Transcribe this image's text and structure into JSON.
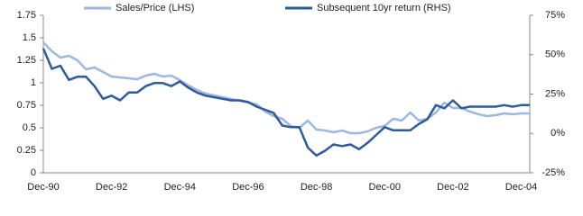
{
  "chart_data": {
    "type": "line",
    "categories": [
      "Dec-90",
      null,
      null,
      null,
      null,
      null,
      null,
      null,
      "Dec-92",
      null,
      null,
      null,
      null,
      null,
      null,
      null,
      "Dec-94",
      null,
      null,
      null,
      null,
      null,
      null,
      null,
      "Dec-96",
      null,
      null,
      null,
      null,
      null,
      null,
      null,
      "Dec-98",
      null,
      null,
      null,
      null,
      null,
      null,
      null,
      "Dec-00",
      null,
      null,
      null,
      null,
      null,
      null,
      null,
      "Dec-02",
      null,
      null,
      null,
      null,
      null,
      null,
      null,
      "Dec-04",
      null
    ],
    "series": [
      {
        "name": "Sales/Price (LHS)",
        "color": "#9db8e0",
        "axis": "y",
        "values": [
          1.45,
          1.35,
          1.28,
          1.3,
          1.25,
          1.15,
          1.17,
          1.12,
          1.07,
          1.06,
          1.05,
          1.04,
          1.08,
          1.1,
          1.07,
          1.08,
          1.03,
          0.97,
          0.92,
          0.88,
          0.86,
          0.84,
          0.82,
          0.8,
          0.78,
          0.76,
          0.68,
          0.63,
          0.6,
          0.52,
          0.5,
          0.58,
          0.48,
          0.47,
          0.45,
          0.47,
          0.44,
          0.44,
          0.46,
          0.5,
          0.52,
          0.6,
          0.58,
          0.67,
          0.58,
          0.6,
          0.67,
          0.78,
          0.72,
          0.72,
          0.68,
          0.65,
          0.63,
          0.64,
          0.66,
          0.65,
          0.66,
          0.66
        ]
      },
      {
        "name": "Subsequent 10yr return (RHS)",
        "color": "#2f5b9b",
        "axis": "y2",
        "values": [
          54,
          41,
          43,
          34,
          36,
          36,
          30,
          22,
          24,
          21,
          26,
          26,
          30,
          32,
          32,
          30,
          33,
          29,
          26,
          24,
          23,
          22,
          21,
          21,
          20,
          17,
          15,
          13,
          5,
          4,
          4,
          -9,
          -14,
          -11,
          -7,
          -8,
          -7,
          -10,
          -6,
          -1,
          4,
          2,
          2,
          2,
          6,
          9,
          18,
          16,
          21,
          16,
          17,
          17,
          17,
          17,
          18,
          17,
          18,
          18
        ]
      }
    ],
    "ylim": [
      0,
      1.75
    ],
    "yticks": [
      0,
      0.25,
      0.5,
      0.75,
      1,
      1.25,
      1.5,
      1.75
    ],
    "y2lim": [
      -25,
      75
    ],
    "y2ticks": [
      {
        "value": -25,
        "label": "-25%"
      },
      {
        "value": 0,
        "label": "0%"
      },
      {
        "value": 25,
        "label": "25%"
      },
      {
        "value": 50,
        "label": "50%"
      },
      {
        "value": 75,
        "label": "75%"
      }
    ],
    "legend": "top"
  }
}
